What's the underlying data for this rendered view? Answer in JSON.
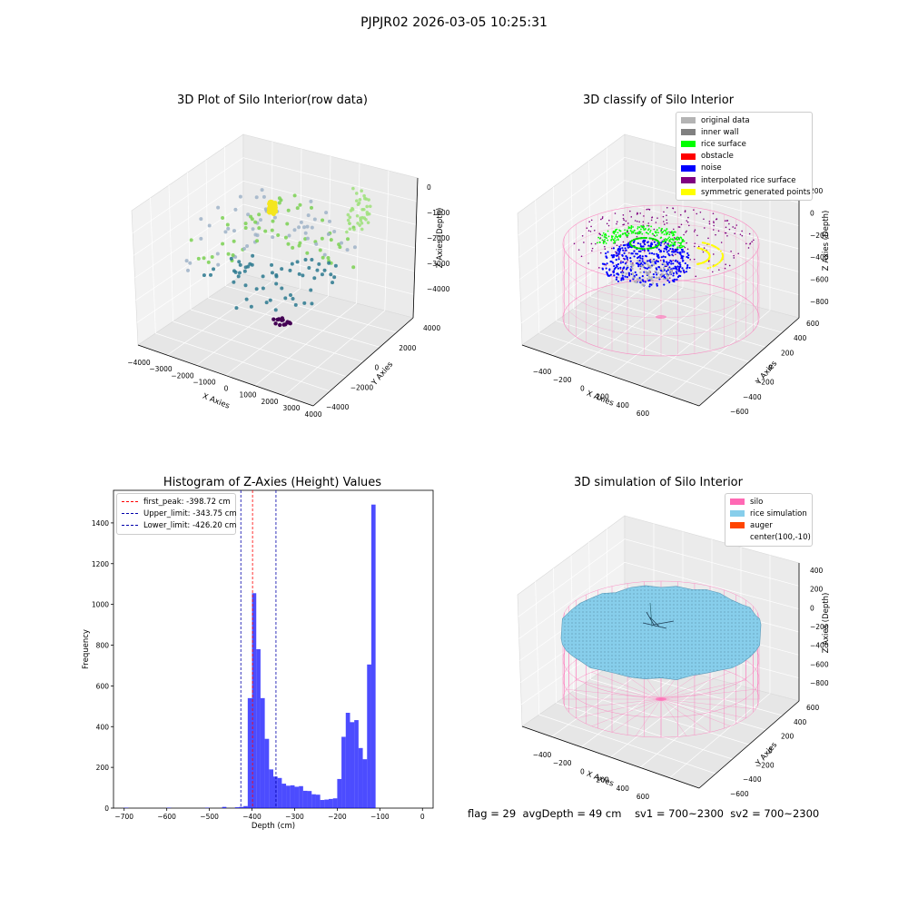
{
  "figure": {
    "suptitle": "PJPJR02 2026-03-05 10:25:31",
    "status": {
      "flag": "flag = 29",
      "avg_depth": "avgDepth = 49 cm",
      "sv1": "sv1 = 700~2300",
      "sv2": "sv2 = 700~2300"
    }
  },
  "chart_data": [
    {
      "type": "scatter",
      "title": "3D Plot of Silo Interior(row data)",
      "xlabel": "X Axies",
      "ylabel": "Y Axies",
      "zlabel": "Z Axies (Depth)",
      "xticks": [
        "−4000",
        "−3000",
        "−2000",
        "−1000",
        "0",
        "1000",
        "2000",
        "3000",
        "4000"
      ],
      "yticks": [
        "−4000",
        "−2000",
        "0",
        "2000",
        "4000"
      ],
      "zticks": [
        "0",
        "−1000",
        "−2000",
        "−3000",
        "−4000"
      ],
      "grid": true,
      "colormap": "viridis"
    },
    {
      "type": "scatter",
      "title": "3D classify of Silo Interior",
      "xlabel": "X Axies",
      "ylabel": "Y Axies",
      "zlabel": "Z Axies (Depth)",
      "xticks": [
        "−400",
        "−200",
        "0",
        "200",
        "400",
        "600"
      ],
      "yticks": [
        "−600",
        "−400",
        "−200",
        "0",
        "200",
        "400",
        "600"
      ],
      "zticks": [
        "200",
        "0",
        "−200",
        "−400",
        "−600",
        "−800"
      ],
      "legend": {
        "placement": "top-right",
        "entries": [
          {
            "label": "original data",
            "color": "#b4b4b4"
          },
          {
            "label": "inner wall",
            "color": "#808080"
          },
          {
            "label": "rice surface",
            "color": "#00ff00"
          },
          {
            "label": "obstacle",
            "color": "#ff0000"
          },
          {
            "label": "noise",
            "color": "#0000ff"
          },
          {
            "label": "interpolated rice surface",
            "color": "#800080"
          },
          {
            "label": "symmetric generated points",
            "color": "#ffff00"
          }
        ]
      },
      "grid": true
    },
    {
      "type": "bar",
      "title": "Histogram of Z-Axies (Height) Values",
      "xlabel": "Depth (cm)",
      "ylabel": "Frequency",
      "xlim": [
        -725,
        25
      ],
      "ylim": [
        0,
        1560
      ],
      "xticks": [
        -700,
        -600,
        -500,
        -400,
        -300,
        -200,
        -100,
        0
      ],
      "yticks": [
        0,
        200,
        400,
        600,
        800,
        1000,
        1200,
        1400
      ],
      "bin_width": 10,
      "bins": [
        {
          "x0": -700,
          "value": 2
        },
        {
          "x0": -600,
          "value": 2
        },
        {
          "x0": -510,
          "value": 2
        },
        {
          "x0": -470,
          "value": 6
        },
        {
          "x0": -440,
          "value": 4
        },
        {
          "x0": -430,
          "value": 6
        },
        {
          "x0": -420,
          "value": 10
        },
        {
          "x0": -410,
          "value": 540
        },
        {
          "x0": -400,
          "value": 1055
        },
        {
          "x0": -390,
          "value": 780
        },
        {
          "x0": -380,
          "value": 540
        },
        {
          "x0": -370,
          "value": 340
        },
        {
          "x0": -360,
          "value": 190
        },
        {
          "x0": -350,
          "value": 155
        },
        {
          "x0": -340,
          "value": 148
        },
        {
          "x0": -330,
          "value": 120
        },
        {
          "x0": -320,
          "value": 110
        },
        {
          "x0": -310,
          "value": 112
        },
        {
          "x0": -300,
          "value": 105
        },
        {
          "x0": -290,
          "value": 108
        },
        {
          "x0": -280,
          "value": 85
        },
        {
          "x0": -270,
          "value": 84
        },
        {
          "x0": -260,
          "value": 68
        },
        {
          "x0": -250,
          "value": 66
        },
        {
          "x0": -240,
          "value": 40
        },
        {
          "x0": -230,
          "value": 42
        },
        {
          "x0": -220,
          "value": 45
        },
        {
          "x0": -210,
          "value": 48
        },
        {
          "x0": -200,
          "value": 143
        },
        {
          "x0": -190,
          "value": 350
        },
        {
          "x0": -180,
          "value": 468
        },
        {
          "x0": -170,
          "value": 422
        },
        {
          "x0": -160,
          "value": 432
        },
        {
          "x0": -150,
          "value": 295
        },
        {
          "x0": -140,
          "value": 240
        },
        {
          "x0": -130,
          "value": 705
        },
        {
          "x0": -120,
          "value": 1490
        }
      ],
      "bar_color": "#0000ff",
      "vlines": [
        {
          "label": "first_peak: -398.72 cm",
          "x": -398.72,
          "color": "#ff0000"
        },
        {
          "label": "Upper_limit: -343.75 cm",
          "x": -343.75,
          "color": "#0000aa"
        },
        {
          "label": "Lower_limit: -426.20 cm",
          "x": -426.2,
          "color": "#0000aa"
        }
      ],
      "legend": {
        "placement": "top-left"
      }
    },
    {
      "type": "surface",
      "title": "3D simulation of Silo Interior",
      "xlabel": "X Axies",
      "ylabel": "Y Axies",
      "zlabel": "Z Axies (Depth)",
      "xticks": [
        "−400",
        "−200",
        "0",
        "200",
        "400",
        "600"
      ],
      "yticks": [
        "−600",
        "−400",
        "−200",
        "0",
        "200",
        "400",
        "600"
      ],
      "zticks": [
        "400",
        "200",
        "0",
        "−200",
        "−400",
        "−600",
        "−800"
      ],
      "legend": {
        "placement": "top-right",
        "entries": [
          {
            "label": "silo",
            "color": "#ff69b4"
          },
          {
            "label": "rice simulation",
            "color": "#87ceeb"
          },
          {
            "label": "auger",
            "color": "#ff4500"
          },
          {
            "label": "center(100,-10)",
            "color": ""
          }
        ]
      },
      "grid": true
    }
  ]
}
